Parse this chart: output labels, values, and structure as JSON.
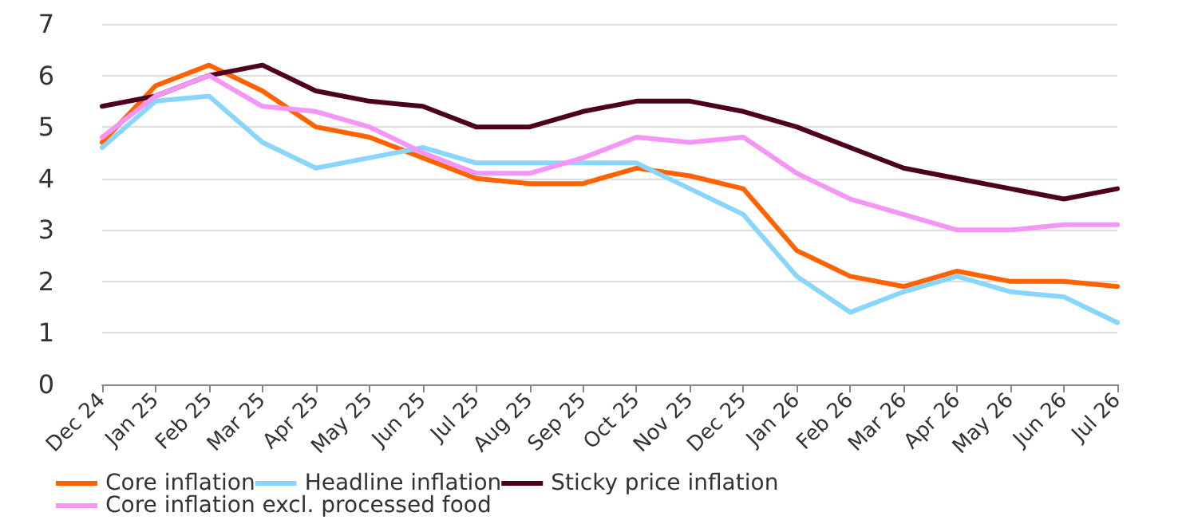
{
  "chart_data": {
    "type": "line",
    "categories": [
      "Dec 24",
      "Jan 25",
      "Feb 25",
      "Mar 25",
      "Apr 25",
      "May 25",
      "Jun 25",
      "Jul 25",
      "Aug 25",
      "Sep 25",
      "Oct 25",
      "Nov 25",
      "Dec 25",
      "Jan 26",
      "Feb 26",
      "Mar 26",
      "Apr 26",
      "May 26",
      "Jun 26",
      "Jul 26"
    ],
    "series": [
      {
        "name": "Core inflation",
        "color": "#ff6200",
        "values": [
          4.7,
          5.8,
          6.2,
          5.7,
          5.0,
          4.8,
          4.4,
          4.0,
          3.9,
          3.9,
          4.2,
          4.05,
          3.8,
          2.6,
          2.1,
          1.9,
          2.2,
          2.0,
          2.0,
          1.9
        ]
      },
      {
        "name": "Headline inflation",
        "color": "#89d6fd",
        "values": [
          4.6,
          5.5,
          5.6,
          4.7,
          4.2,
          4.4,
          4.6,
          4.3,
          4.3,
          4.3,
          4.3,
          3.8,
          3.3,
          2.1,
          1.4,
          1.8,
          2.1,
          1.8,
          1.7,
          1.2
        ]
      },
      {
        "name": "Sticky price inflation",
        "color": "#4e0020",
        "values": [
          5.4,
          5.6,
          6.0,
          6.2,
          5.7,
          5.5,
          5.4,
          5.0,
          5.0,
          5.3,
          5.5,
          5.5,
          5.3,
          5.0,
          4.6,
          4.2,
          4.0,
          3.8,
          3.6,
          3.8
        ]
      },
      {
        "name": "Core inflation excl. processed food",
        "color": "#f596f6",
        "values": [
          4.8,
          5.6,
          6.0,
          5.4,
          5.3,
          5.0,
          4.5,
          4.1,
          4.1,
          4.4,
          4.8,
          4.7,
          4.8,
          4.1,
          3.6,
          3.3,
          3.0,
          3.0,
          3.1,
          3.1
        ]
      }
    ],
    "ylim": [
      0,
      7
    ],
    "yticks": [
      0,
      1,
      2,
      3,
      4,
      5,
      6,
      7
    ],
    "grid": "y",
    "legend": "bottom",
    "marker": "none",
    "line_style": "solid"
  }
}
